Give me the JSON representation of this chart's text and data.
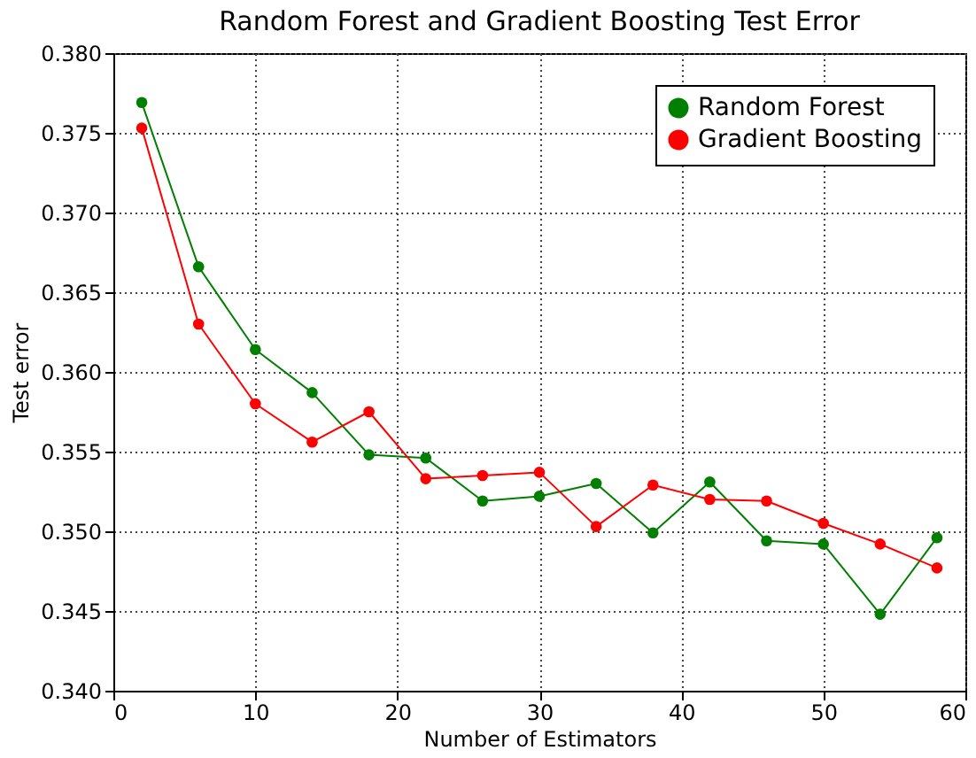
{
  "chart_data": {
    "type": "line",
    "title": "Random Forest and Gradient Boosting Test Error",
    "xlabel": "Number of Estimators",
    "ylabel": "Test error",
    "x": [
      2,
      6,
      10,
      14,
      18,
      22,
      26,
      30,
      34,
      38,
      42,
      46,
      50,
      54,
      58
    ],
    "series": [
      {
        "name": "Random Forest",
        "color": "#007f00",
        "values": [
          0.3769,
          0.3666,
          0.3614,
          0.3587,
          0.3548,
          0.3546,
          0.3519,
          0.3522,
          0.353,
          0.3499,
          0.3531,
          0.3494,
          0.3492,
          0.3448,
          0.3496
        ]
      },
      {
        "name": "Gradient Boosting",
        "color": "#ff0000",
        "values": [
          0.3753,
          0.363,
          0.358,
          0.3556,
          0.3575,
          0.3533,
          0.3535,
          0.3537,
          0.3503,
          0.3529,
          0.352,
          0.3519,
          0.3505,
          0.3492,
          0.3477
        ]
      }
    ],
    "xlim": [
      0,
      60
    ],
    "xticks": [
      0,
      10,
      20,
      30,
      40,
      50,
      60
    ],
    "ylim": [
      0.34,
      0.38
    ],
    "yticks": [
      {
        "value": 0.34,
        "label": "0.340"
      },
      {
        "value": 0.345,
        "label": "0.345"
      },
      {
        "value": 0.35,
        "label": "0.350"
      },
      {
        "value": 0.355,
        "label": "0.355"
      },
      {
        "value": 0.36,
        "label": "0.360"
      },
      {
        "value": 0.365,
        "label": "0.365"
      },
      {
        "value": 0.37,
        "label": "0.370"
      },
      {
        "value": 0.375,
        "label": "0.375"
      },
      {
        "value": 0.38,
        "label": "0.380"
      }
    ],
    "grid": true,
    "legend": "top right",
    "marker": "circle",
    "line_style": "solid"
  }
}
